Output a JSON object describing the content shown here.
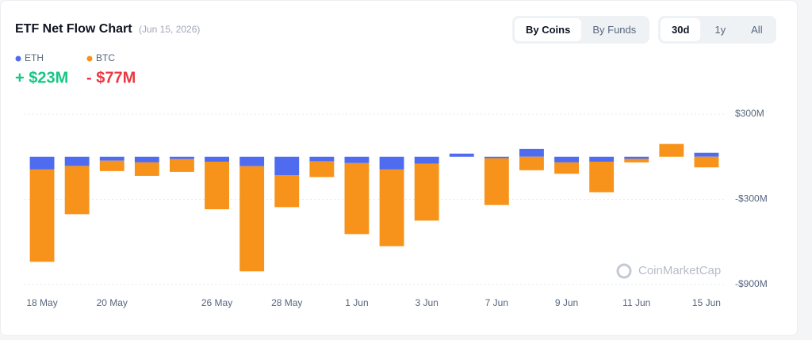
{
  "header": {
    "title": "ETF Net Flow Chart",
    "date": "(Jun 15, 2026)",
    "view_tabs": [
      "By Coins",
      "By Funds"
    ],
    "range_tabs": [
      "30d",
      "1y",
      "All"
    ],
    "watermark": "CoinMarketCap"
  },
  "chart_data": {
    "type": "bar",
    "stacked": true,
    "categories": [
      "18 May",
      null,
      "20 May",
      null,
      null,
      "26 May",
      null,
      "28 May",
      null,
      "1 Jun",
      null,
      "3 Jun",
      null,
      "7 Jun",
      null,
      "9 Jun",
      null,
      "11 Jun",
      null,
      "15 Jun"
    ],
    "series": [
      {
        "name": "ETH",
        "color": "#4f6cf0",
        "total": "+ $23M",
        "values": [
          -90,
          -65,
          -28,
          -40,
          -17,
          -35,
          -67,
          -130,
          -33,
          -45,
          -90,
          -50,
          22,
          -10,
          55,
          -40,
          -35,
          -15,
          0,
          28
        ]
      },
      {
        "name": "BTC",
        "color": "#f7931a",
        "total": "- $77M",
        "values": [
          -650,
          -340,
          -73,
          -95,
          -90,
          -335,
          -740,
          -225,
          -110,
          -500,
          -540,
          -400,
          0,
          -330,
          -95,
          -80,
          -215,
          -25,
          90,
          -75
        ]
      }
    ],
    "ylim": [
      -900,
      300
    ],
    "yticks": [
      {
        "value": 300,
        "label": "$300M"
      },
      {
        "value": -300,
        "label": "-$300M"
      },
      {
        "value": -900,
        "label": "-$900M"
      }
    ],
    "grid": true
  }
}
